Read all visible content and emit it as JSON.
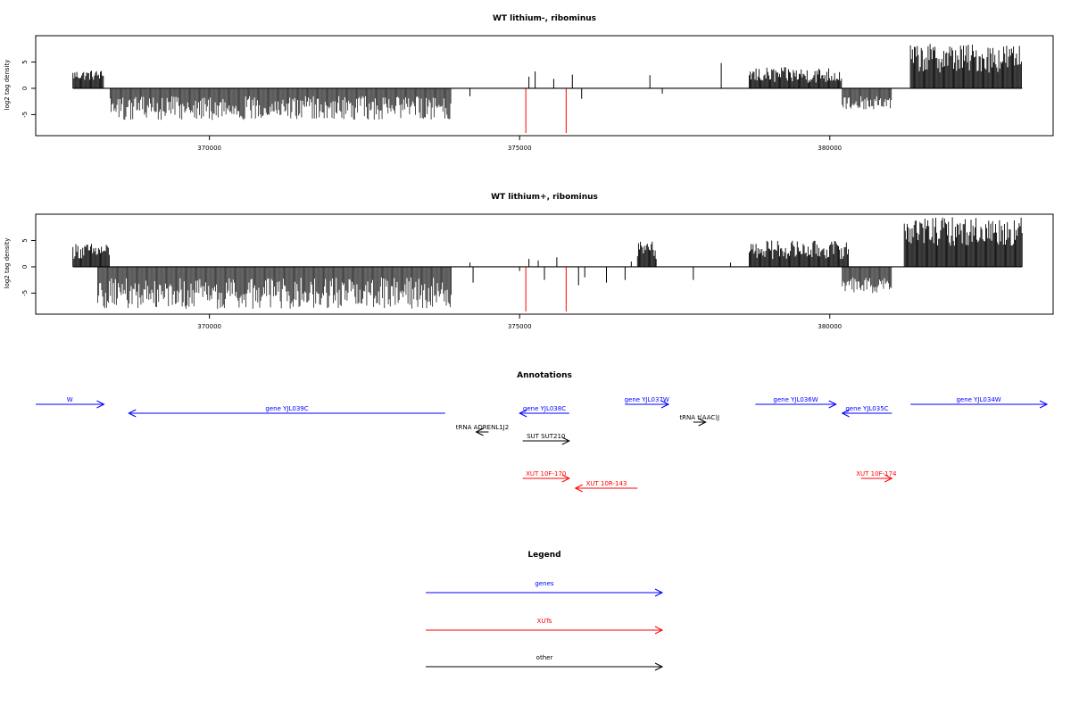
{
  "colors": {
    "gene": "#0000ff",
    "xut": "#ff0000",
    "other": "#000000",
    "pos": "#000000",
    "neg": "#333333",
    "red_mark": "#ff0000"
  },
  "chart_data": [
    {
      "type": "bar",
      "title": "WT lithium-, ribominus",
      "ylabel": "log2 tag density",
      "xlabel": "",
      "xlim": [
        367200,
        383600
      ],
      "ylim": [
        -9,
        10
      ],
      "xticks": [
        370000,
        375000,
        380000
      ],
      "xtick_labels": [
        "370000",
        "375000",
        "380000"
      ],
      "yticks": [
        -5,
        0,
        5
      ],
      "ytick_labels": [
        "-5",
        "0",
        "5"
      ],
      "grid": false,
      "segments": [
        {
          "sign": "pos",
          "from": 367800,
          "to": 368300,
          "min": 1.5,
          "max": 3.5
        },
        {
          "sign": "neg",
          "from": 368400,
          "to": 373900,
          "min": 1.5,
          "max": 6
        },
        {
          "sign": "pos",
          "from": 378700,
          "to": 380200,
          "min": 1,
          "max": 4
        },
        {
          "sign": "neg",
          "from": 380200,
          "to": 381000,
          "min": 1.5,
          "max": 4
        },
        {
          "sign": "pos",
          "from": 381300,
          "to": 383100,
          "min": 3,
          "max": 8.5
        }
      ],
      "isolated": [
        [
          374200,
          -1.5
        ],
        [
          375150,
          2.2
        ],
        [
          375250,
          3.2
        ],
        [
          375550,
          1.8
        ],
        [
          375850,
          2.6
        ],
        [
          376000,
          -2
        ],
        [
          377100,
          2.5
        ],
        [
          377300,
          -1
        ],
        [
          378250,
          4.8
        ]
      ],
      "red_marks": [
        [
          375100,
          -8.5
        ],
        [
          375750,
          -8.5
        ]
      ]
    },
    {
      "type": "bar",
      "title": "WT lithium+, ribominus",
      "ylabel": "log2 tag density",
      "xlabel": "",
      "xlim": [
        367200,
        383600
      ],
      "ylim": [
        -9,
        10
      ],
      "xticks": [
        370000,
        375000,
        380000
      ],
      "xtick_labels": [
        "370000",
        "375000",
        "380000"
      ],
      "yticks": [
        -5,
        0,
        5
      ],
      "ytick_labels": [
        "-5",
        "0",
        "5"
      ],
      "grid": false,
      "segments": [
        {
          "sign": "pos",
          "from": 367800,
          "to": 368400,
          "min": 1.5,
          "max": 4.5
        },
        {
          "sign": "neg",
          "from": 368200,
          "to": 373900,
          "min": 2,
          "max": 8
        },
        {
          "sign": "pos",
          "from": 376900,
          "to": 377200,
          "min": 2,
          "max": 4.8
        },
        {
          "sign": "pos",
          "from": 378700,
          "to": 380300,
          "min": 1.5,
          "max": 5
        },
        {
          "sign": "neg",
          "from": 380200,
          "to": 381000,
          "min": 2,
          "max": 5
        },
        {
          "sign": "pos",
          "from": 381200,
          "to": 383100,
          "min": 4,
          "max": 9.5
        }
      ],
      "isolated": [
        [
          374200,
          0.8
        ],
        [
          374250,
          -3
        ],
        [
          375000,
          -0.8
        ],
        [
          375150,
          1.5
        ],
        [
          375300,
          1.2
        ],
        [
          375400,
          -2.5
        ],
        [
          375600,
          1.8
        ],
        [
          375950,
          -3.5
        ],
        [
          376050,
          -2
        ],
        [
          376400,
          -3
        ],
        [
          376700,
          -2.5
        ],
        [
          376800,
          1
        ],
        [
          377200,
          1.5
        ],
        [
          377800,
          -2.5
        ],
        [
          378400,
          0.8
        ]
      ],
      "red_marks": [
        [
          375100,
          -8.5
        ],
        [
          375750,
          -8.5
        ]
      ]
    }
  ],
  "annotations": {
    "title": "Annotations",
    "xlim": [
      367200,
      383600
    ],
    "items": [
      {
        "label": "W",
        "cls": "gene",
        "start": 367200,
        "end": 368300,
        "dir": "right",
        "row": 0
      },
      {
        "label": "gene YJL039C",
        "cls": "gene",
        "start": 368700,
        "end": 373800,
        "dir": "left",
        "row": 1
      },
      {
        "label": "gene YJL038C",
        "cls": "gene",
        "start": 375000,
        "end": 375800,
        "dir": "left",
        "row": 1
      },
      {
        "label": "gene YJL037W",
        "cls": "gene",
        "start": 376700,
        "end": 377400,
        "dir": "right",
        "row": 0
      },
      {
        "label": "gene YJL036W",
        "cls": "gene",
        "start": 378800,
        "end": 380100,
        "dir": "right",
        "row": 0
      },
      {
        "label": "gene YJL035C",
        "cls": "gene",
        "start": 380200,
        "end": 381000,
        "dir": "left",
        "row": 1
      },
      {
        "label": "gene YJL034W",
        "cls": "gene",
        "start": 381300,
        "end": 383500,
        "dir": "right",
        "row": 0
      },
      {
        "label": "tRNA t(AAC)J",
        "cls": "other",
        "start": 377800,
        "end": 378000,
        "dir": "right",
        "row": 2
      },
      {
        "label": "tRNA ADRENL1J2",
        "cls": "other",
        "start": 374300,
        "end": 374500,
        "dir": "left",
        "row": 3
      },
      {
        "label": "SUT SUT210",
        "cls": "other",
        "start": 375050,
        "end": 375800,
        "dir": "right",
        "row": 4
      },
      {
        "label": "XUT 10F-170",
        "cls": "xut",
        "start": 375050,
        "end": 375800,
        "dir": "right",
        "row": 6
      },
      {
        "label": "XUT 10R-143",
        "cls": "xut",
        "start": 375900,
        "end": 376900,
        "dir": "left",
        "row": 7
      },
      {
        "label": "XUT 10F-174",
        "cls": "xut",
        "start": 380500,
        "end": 381000,
        "dir": "right",
        "row": 6
      }
    ]
  },
  "legend": {
    "title": "Legend",
    "items": [
      {
        "label": "genes",
        "cls": "gene"
      },
      {
        "label": "XUTs",
        "cls": "xut"
      },
      {
        "label": "other",
        "cls": "other"
      }
    ]
  }
}
